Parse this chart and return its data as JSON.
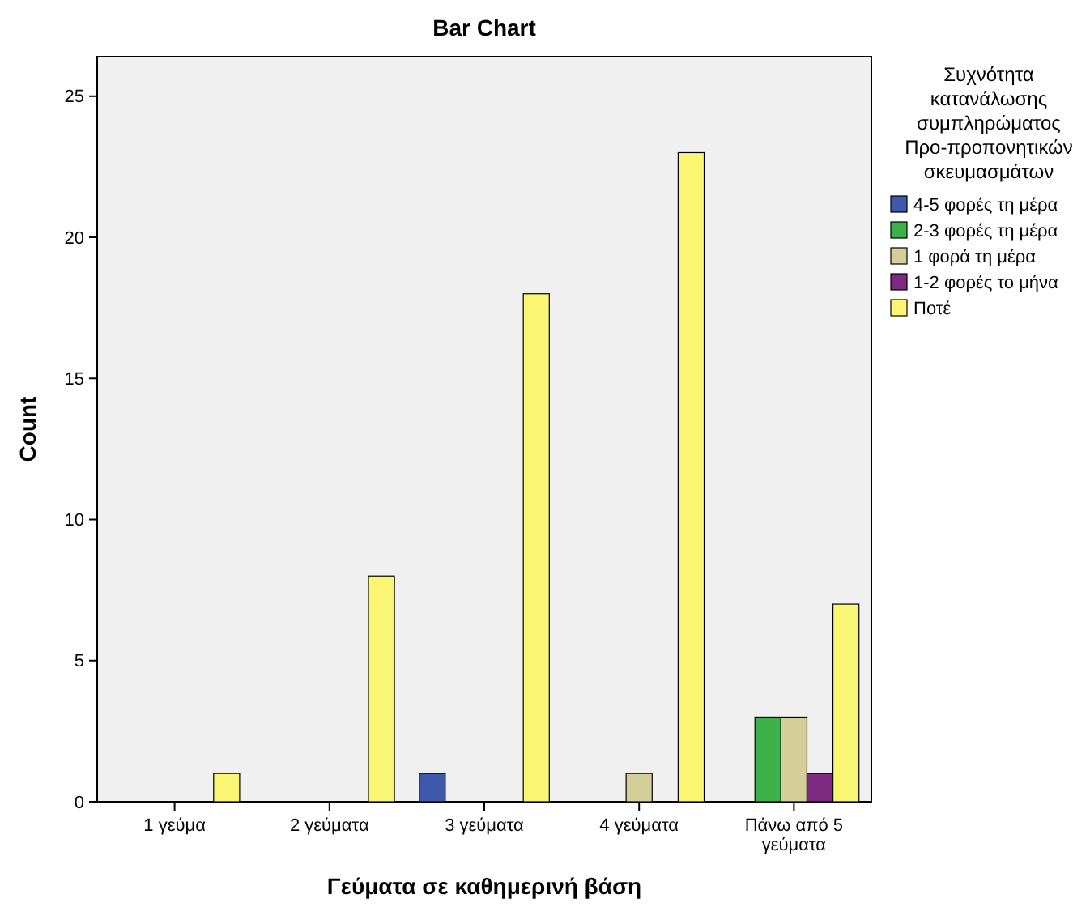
{
  "chart_data": {
    "type": "bar",
    "title": "Bar Chart",
    "xlabel": "Γεύματα σε καθημερινή βάση",
    "ylabel": "Count",
    "legend_title": "Συχνότητα κατανάλωσης συμπληρώματος Προ-προπονητικών σκευμασμάτων",
    "categories": [
      "1 γεύμα",
      "2 γεύματα",
      "3 γεύματα",
      "4 γεύματα",
      "Πάνω από 5 γεύματα"
    ],
    "series": [
      {
        "name": "4-5 φορές τη μέρα",
        "color": "#3e58ac",
        "values": [
          null,
          null,
          1,
          null,
          null
        ]
      },
      {
        "name": "2-3 φορές τη μέρα",
        "color": "#3eb04a",
        "values": [
          null,
          null,
          null,
          null,
          3
        ]
      },
      {
        "name": "1 φορά τη μέρα",
        "color": "#d4ce98",
        "values": [
          null,
          null,
          null,
          1,
          3
        ]
      },
      {
        "name": "1-2 φορές το μήνα",
        "color": "#7d2a80",
        "values": [
          null,
          null,
          null,
          null,
          1
        ]
      },
      {
        "name": "Ποτέ",
        "color": "#faf674",
        "values": [
          1,
          8,
          18,
          23,
          7
        ]
      }
    ],
    "ylim": [
      0,
      26.4
    ],
    "yticks": [
      0,
      5,
      10,
      15,
      20,
      25
    ],
    "grid": false,
    "legend": "top right"
  }
}
